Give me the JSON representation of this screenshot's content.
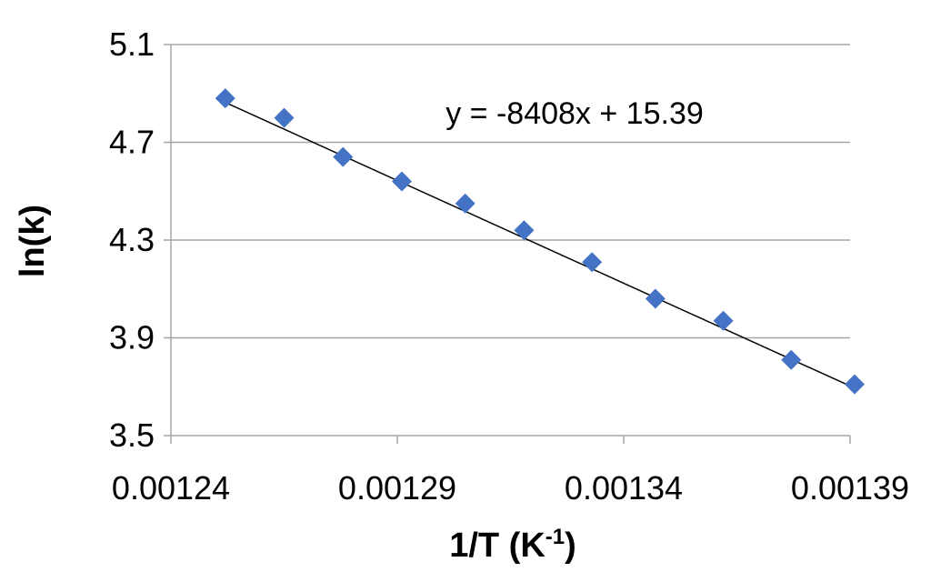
{
  "chart_data": {
    "type": "scatter",
    "xlabel": "1/T (K",
    "xlabel_superscript": "-1",
    "xlabel_suffix": ")",
    "ylabel": "ln(k)",
    "xlim": [
      0.00124,
      0.00139
    ],
    "ylim": [
      3.5,
      5.1
    ],
    "x_ticks": [
      "0.00124",
      "0.00129",
      "0.00134",
      "0.00139"
    ],
    "x_tick_values": [
      0.00124,
      0.00129,
      0.00134,
      0.00139
    ],
    "y_ticks": [
      "3.5",
      "3.9",
      "4.3",
      "4.7",
      "5.1"
    ],
    "y_tick_values": [
      3.5,
      3.9,
      4.3,
      4.7,
      5.1
    ],
    "grid": "horizontal",
    "marker": "diamond",
    "marker_color": "#4472C4",
    "trendline_color": "#000000",
    "series": [
      {
        "x": [
          0.001252,
          0.001265,
          0.001278,
          0.001291,
          0.001305,
          0.001318,
          0.001333,
          0.001347,
          0.001362,
          0.001377,
          0.001391
        ],
        "y": [
          4.88,
          4.8,
          4.64,
          4.54,
          4.45,
          4.34,
          4.21,
          4.06,
          3.97,
          3.81,
          3.71
        ]
      }
    ],
    "trendline": {
      "slope": -8408,
      "intercept": 15.39,
      "label": "y = -8408x + 15.39"
    }
  }
}
